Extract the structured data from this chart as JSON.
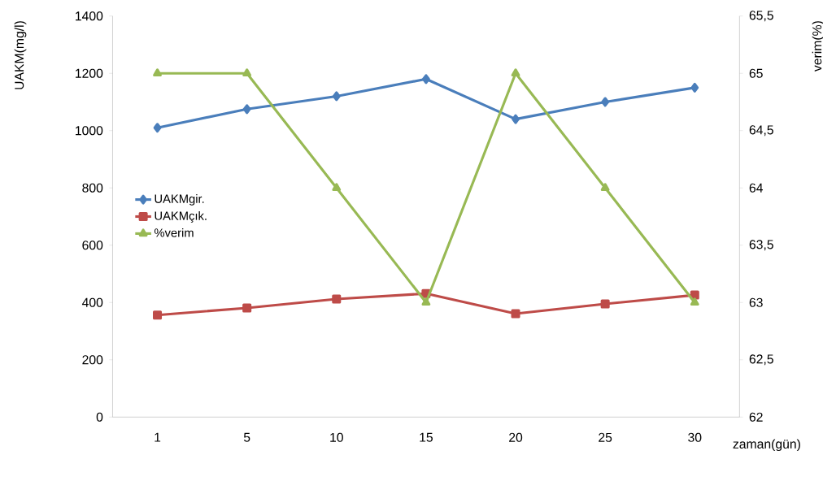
{
  "chart_data": {
    "type": "line",
    "categories": [
      "1",
      "5",
      "10",
      "15",
      "20",
      "25",
      "30"
    ],
    "series": [
      {
        "name": "UAKMgir.",
        "color": "#4a7ebb",
        "marker": "diamond",
        "values": [
          1010,
          1075,
          1120,
          1180,
          1040,
          1100,
          1150
        ]
      },
      {
        "name": "UAKMçık.",
        "color": "#be4b48",
        "marker": "square",
        "values": [
          356,
          381,
          412,
          431,
          361,
          395,
          426
        ]
      },
      {
        "name": "%verim",
        "color": "#98b954",
        "marker": "triangle",
        "axis": "y2",
        "values": [
          65,
          65,
          64,
          63,
          65,
          64,
          63
        ]
      }
    ],
    "xlabel": "zaman(gün)",
    "ylabel": "UAKM(mg/l)",
    "y2label": "verim(%)",
    "ylim": [
      0,
      1400
    ],
    "yticks": [
      0,
      200,
      400,
      600,
      800,
      1000,
      1200,
      1400
    ],
    "y2lim": [
      62,
      65.5
    ],
    "y2ticks": [
      62,
      {
        "value": 62.5,
        "label": "62,5"
      },
      63,
      {
        "value": 63.5,
        "label": "63,5"
      },
      64,
      {
        "value": 64.5,
        "label": "64,5"
      },
      65,
      {
        "value": 65.5,
        "label": "65,5"
      }
    ],
    "legend": "left",
    "grid": false,
    "line_style": "solid"
  }
}
